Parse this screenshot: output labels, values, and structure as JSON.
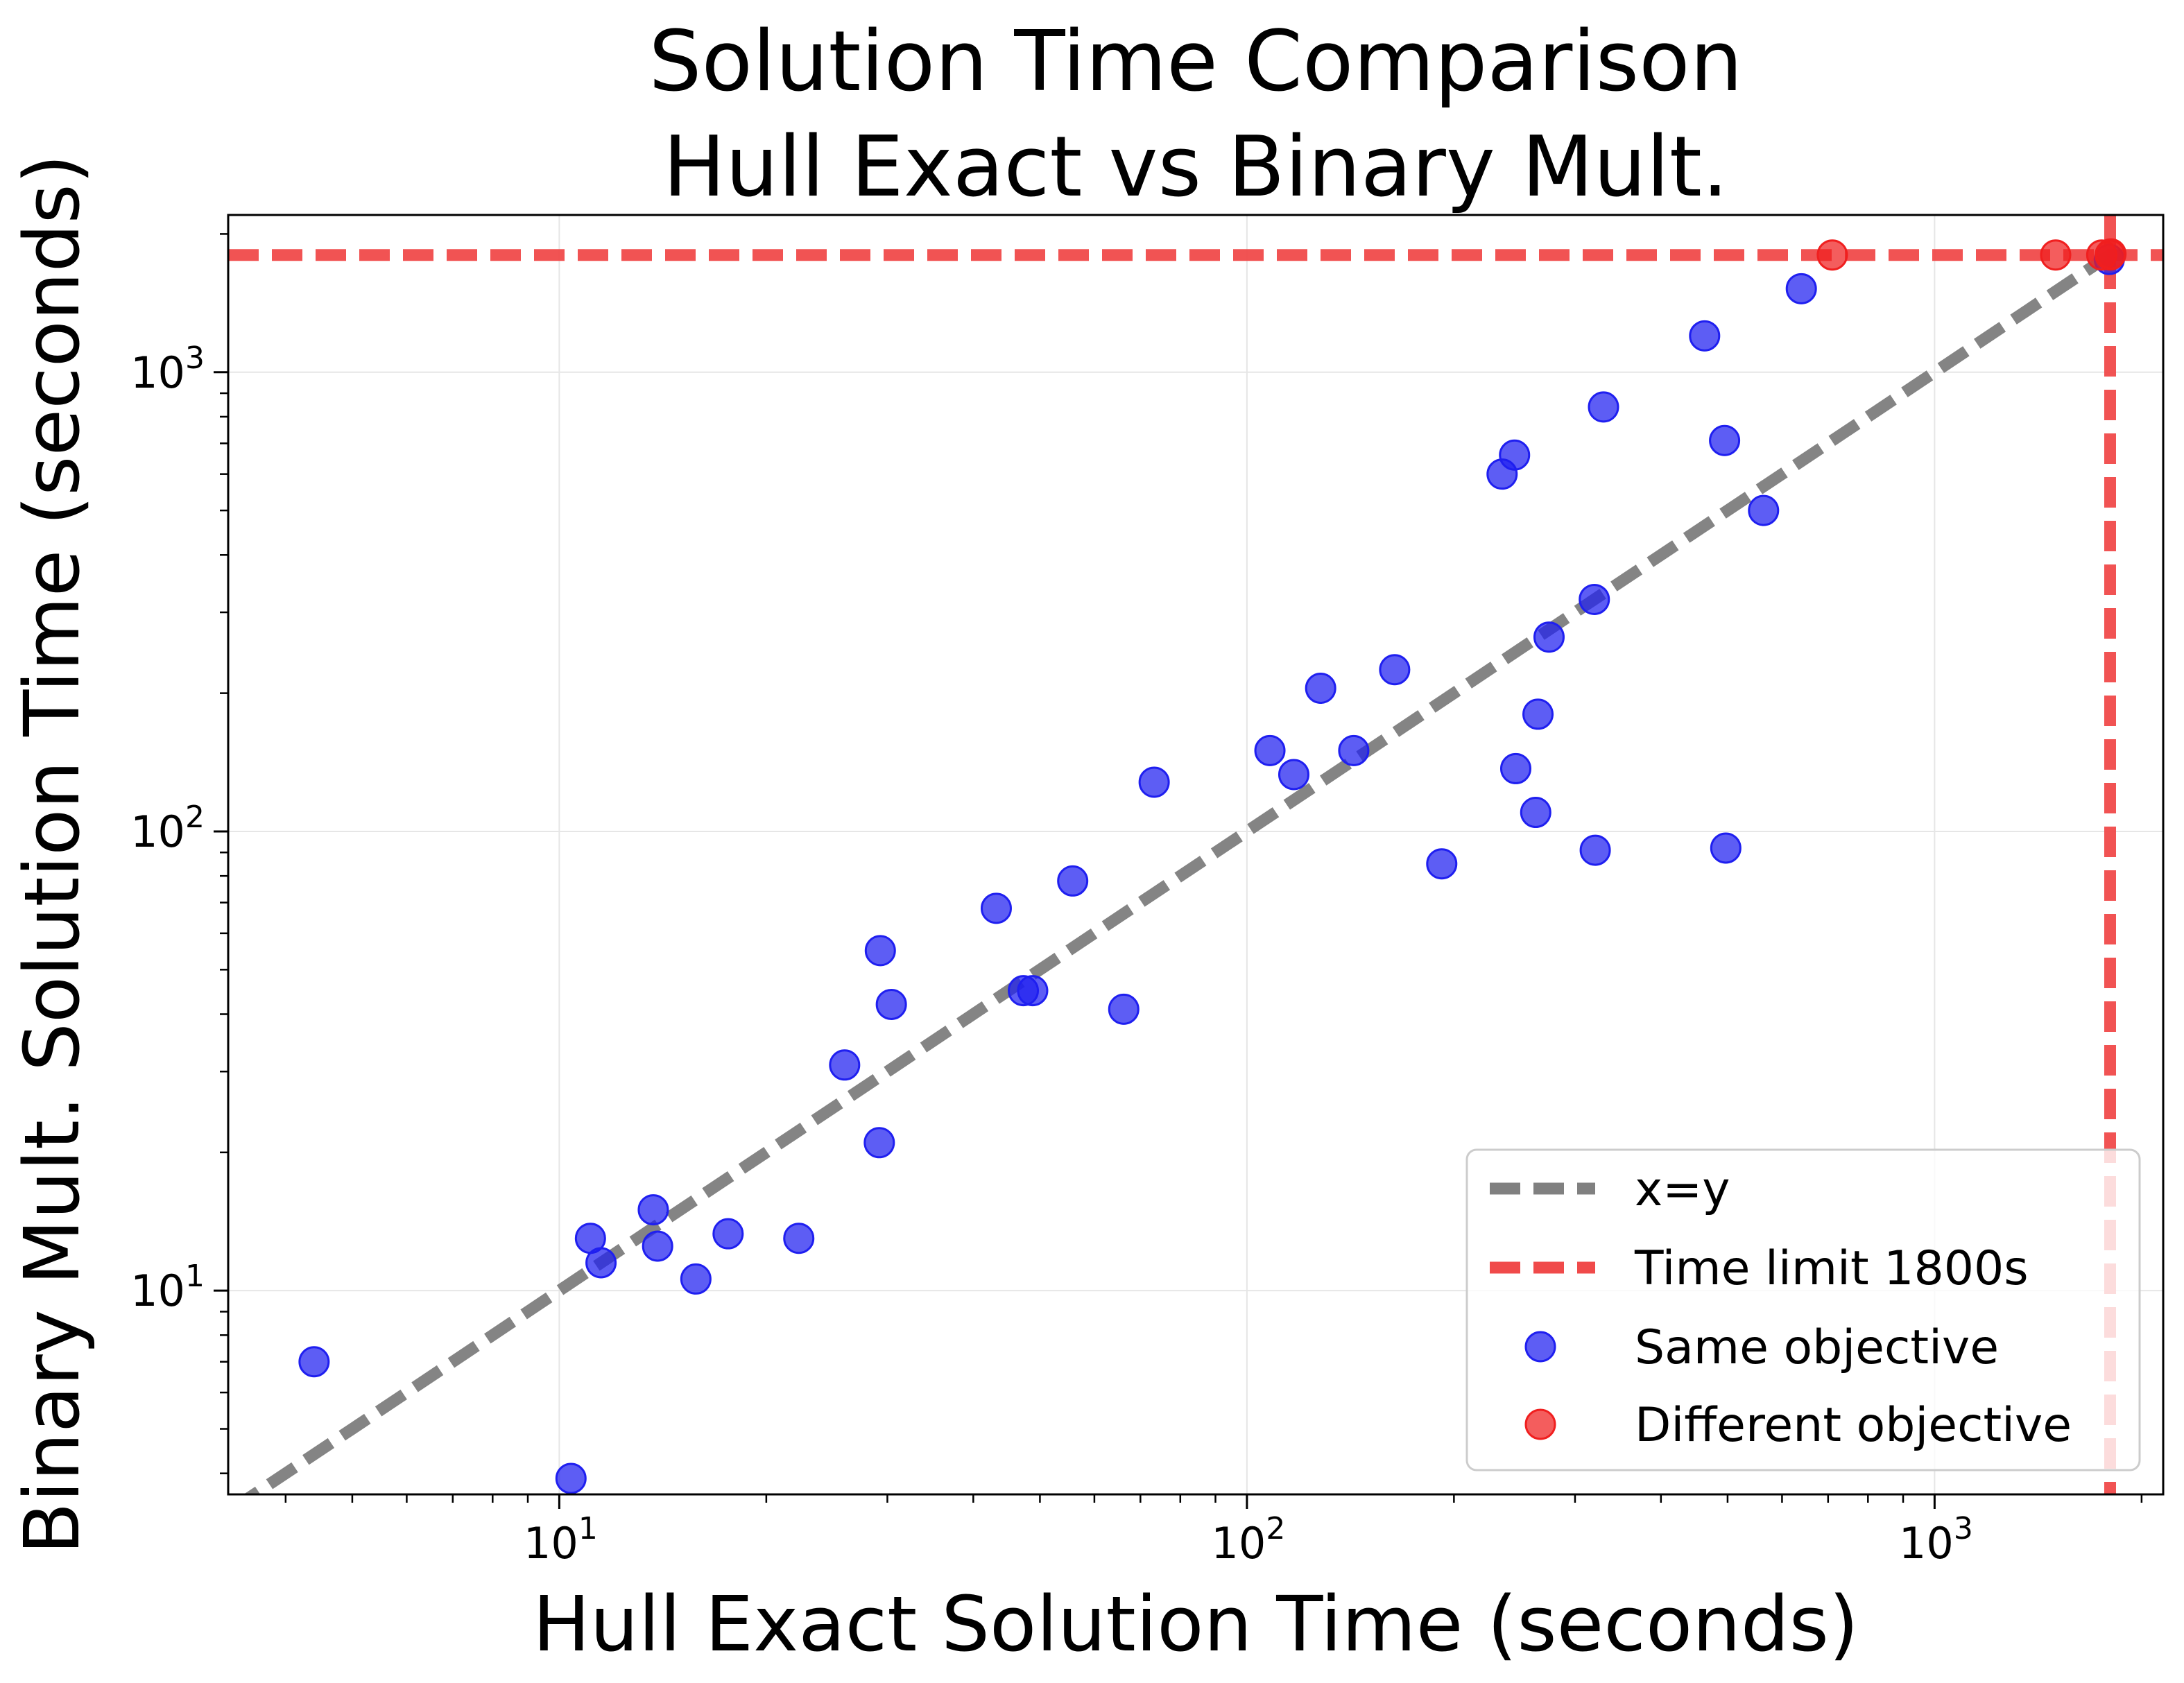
{
  "chart_data": {
    "type": "scatter",
    "title_lines": [
      "Solution Time Comparison",
      "Hull Exact vs Binary Mult."
    ],
    "xlabel": "Hull Exact Solution Time (seconds)",
    "ylabel": "Binary Mult. Solution Time (seconds)",
    "xscale": "log",
    "yscale": "log",
    "xlim": [
      3.3,
      2150
    ],
    "ylim": [
      3.6,
      2200
    ],
    "grid": true,
    "legend_position": "lower-right",
    "x_ticks": [
      {
        "value": 10,
        "base": "10",
        "exp": "1"
      },
      {
        "value": 100,
        "base": "10",
        "exp": "2"
      },
      {
        "value": 1000,
        "base": "10",
        "exp": "3"
      }
    ],
    "y_ticks": [
      {
        "value": 10,
        "base": "10",
        "exp": "1"
      },
      {
        "value": 100,
        "base": "10",
        "exp": "2"
      },
      {
        "value": 1000,
        "base": "10",
        "exp": "3"
      }
    ],
    "reference_lines": [
      {
        "name": "x=y",
        "kind": "diagonal",
        "color": "#808080"
      },
      {
        "name": "Time limit 1800s",
        "kind": "limit",
        "value": 1800,
        "color": "#f04a4a"
      }
    ],
    "series": [
      {
        "name": "Same objective",
        "color": "#1f1ff0",
        "points": [
          [
            4.4,
            7.0
          ],
          [
            10.4,
            3.9
          ],
          [
            11.1,
            13.0
          ],
          [
            11.5,
            11.5
          ],
          [
            13.7,
            15.0
          ],
          [
            13.9,
            12.5
          ],
          [
            15.8,
            10.6
          ],
          [
            17.6,
            13.3
          ],
          [
            22.3,
            13.0
          ],
          [
            26.0,
            31.0
          ],
          [
            29.3,
            55.0
          ],
          [
            29.2,
            21.0
          ],
          [
            30.4,
            42.0
          ],
          [
            43.2,
            68.0
          ],
          [
            47.3,
            45.0
          ],
          [
            48.8,
            45.0
          ],
          [
            55.8,
            78.0
          ],
          [
            66.2,
            41.0
          ],
          [
            73.3,
            128.0
          ],
          [
            108.0,
            150.0
          ],
          [
            117.0,
            133.0
          ],
          [
            128.0,
            205.0
          ],
          [
            143.0,
            150.0
          ],
          [
            164.0,
            225.0
          ],
          [
            192.0,
            85.0
          ],
          [
            235.0,
            600.0
          ],
          [
            245.0,
            660.0
          ],
          [
            246.0,
            137.0
          ],
          [
            263.0,
            110.0
          ],
          [
            265.0,
            180.0
          ],
          [
            275.0,
            265.0
          ],
          [
            320.0,
            320.0
          ],
          [
            321.0,
            91.0
          ],
          [
            330.0,
            840.0
          ],
          [
            463.0,
            1200.0
          ],
          [
            495.0,
            710.0
          ],
          [
            497.0,
            92.0
          ],
          [
            564.0,
            500.0
          ],
          [
            640.0,
            1520.0
          ],
          [
            1795.0,
            1760.0
          ]
        ]
      },
      {
        "name": "Different objective",
        "color": "#f01f1f",
        "points": [
          [
            710.0,
            1800.0
          ],
          [
            1500.0,
            1800.0
          ],
          [
            1750.0,
            1800.0
          ],
          [
            1800.0,
            1800.0
          ],
          [
            1805.0,
            1810.0
          ]
        ]
      }
    ]
  }
}
